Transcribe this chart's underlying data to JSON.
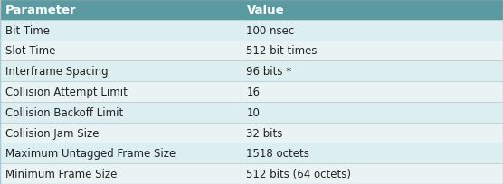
{
  "header": [
    "Parameter",
    "Value"
  ],
  "rows": [
    [
      "Bit Time",
      "100 nsec"
    ],
    [
      "Slot Time",
      "512 bit times"
    ],
    [
      "Interframe Spacing",
      "96 bits *"
    ],
    [
      "Collision Attempt Limit",
      "16"
    ],
    [
      "Collision Backoff Limit",
      "10"
    ],
    [
      "Collision Jam Size",
      "32 bits"
    ],
    [
      "Maximum Untagged Frame Size",
      "1518 octets"
    ],
    [
      "Minimum Frame Size",
      "512 bits (64 octets)"
    ]
  ],
  "header_bg": "#5b9aa0",
  "row_bg_odd": "#ddeef0",
  "row_bg_even": "#eaf3f4",
  "header_text_color": "#ffffff",
  "row_text_color": "#222222",
  "border_color": "#adc8cc",
  "col_split": 0.48,
  "figsize": [
    5.56,
    2.05
  ],
  "dpi": 100,
  "font_size": 8.5,
  "header_font_size": 9.5
}
